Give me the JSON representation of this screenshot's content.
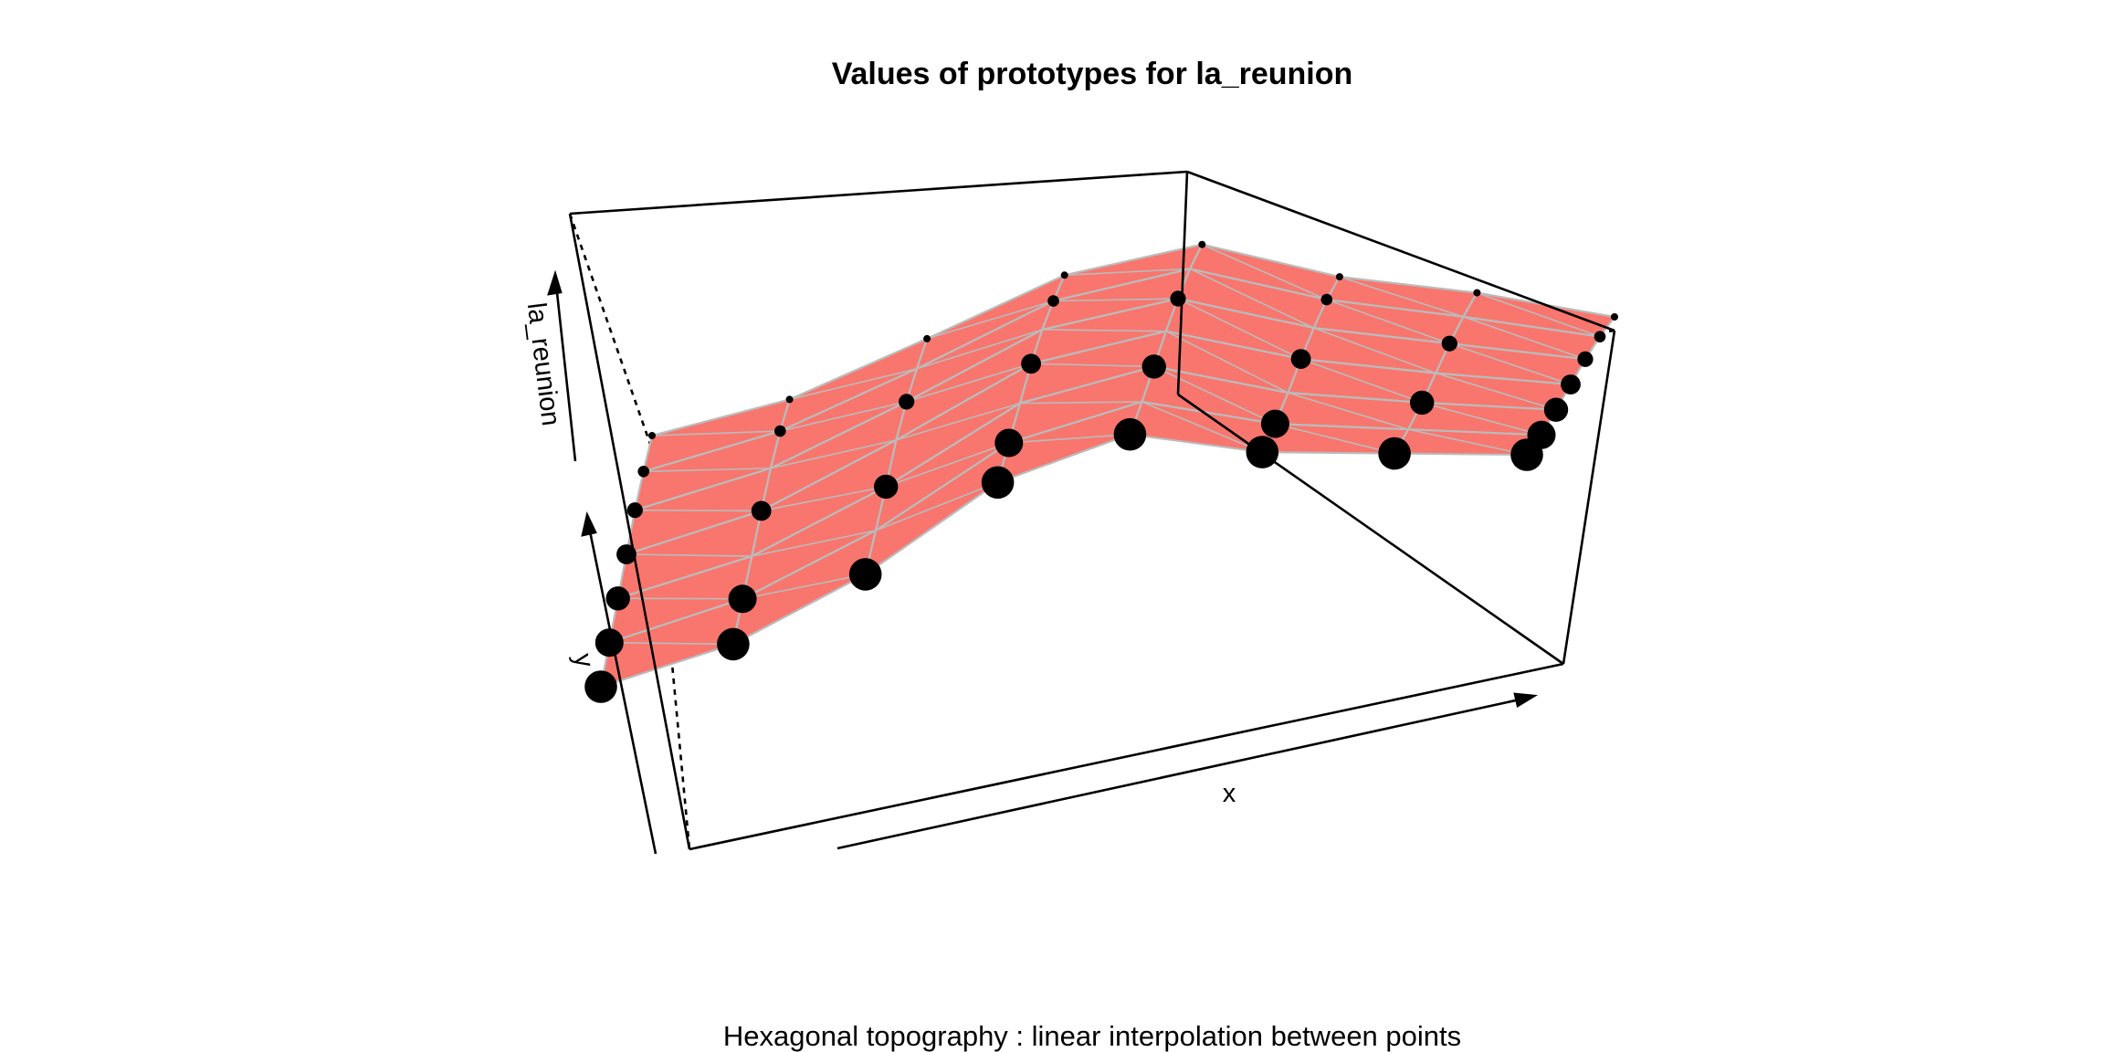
{
  "chart_data": {
    "type": "surface3d",
    "title": "Values of prototypes for la_reunion",
    "subtitle": "Hexagonal topography : linear interpolation between points",
    "xlabel": "x",
    "ylabel": "y",
    "zlabel": "la_reunion",
    "grid_rows": 7,
    "grid_cols": 8,
    "z_rows": [
      [
        0.55,
        0.62,
        0.78,
        0.95,
        1.0,
        0.82,
        0.7,
        0.55
      ],
      [
        0.5,
        0.58,
        0.74,
        0.92,
        0.97,
        0.79,
        0.66,
        0.52
      ],
      [
        0.44,
        0.52,
        0.69,
        0.88,
        0.92,
        0.74,
        0.61,
        0.48
      ],
      [
        0.36,
        0.44,
        0.62,
        0.82,
        0.86,
        0.68,
        0.55,
        0.43
      ],
      [
        0.28,
        0.35,
        0.52,
        0.74,
        0.79,
        0.61,
        0.49,
        0.38
      ],
      [
        0.2,
        0.27,
        0.43,
        0.66,
        0.72,
        0.55,
        0.44,
        0.33
      ],
      [
        0.12,
        0.18,
        0.34,
        0.58,
        0.66,
        0.5,
        0.4,
        0.3
      ]
    ],
    "surface_color": "#f8766d",
    "mesh_color": "#bbbbbb",
    "point_color": "#000000",
    "box_style": "box with dotted hidden edges"
  }
}
